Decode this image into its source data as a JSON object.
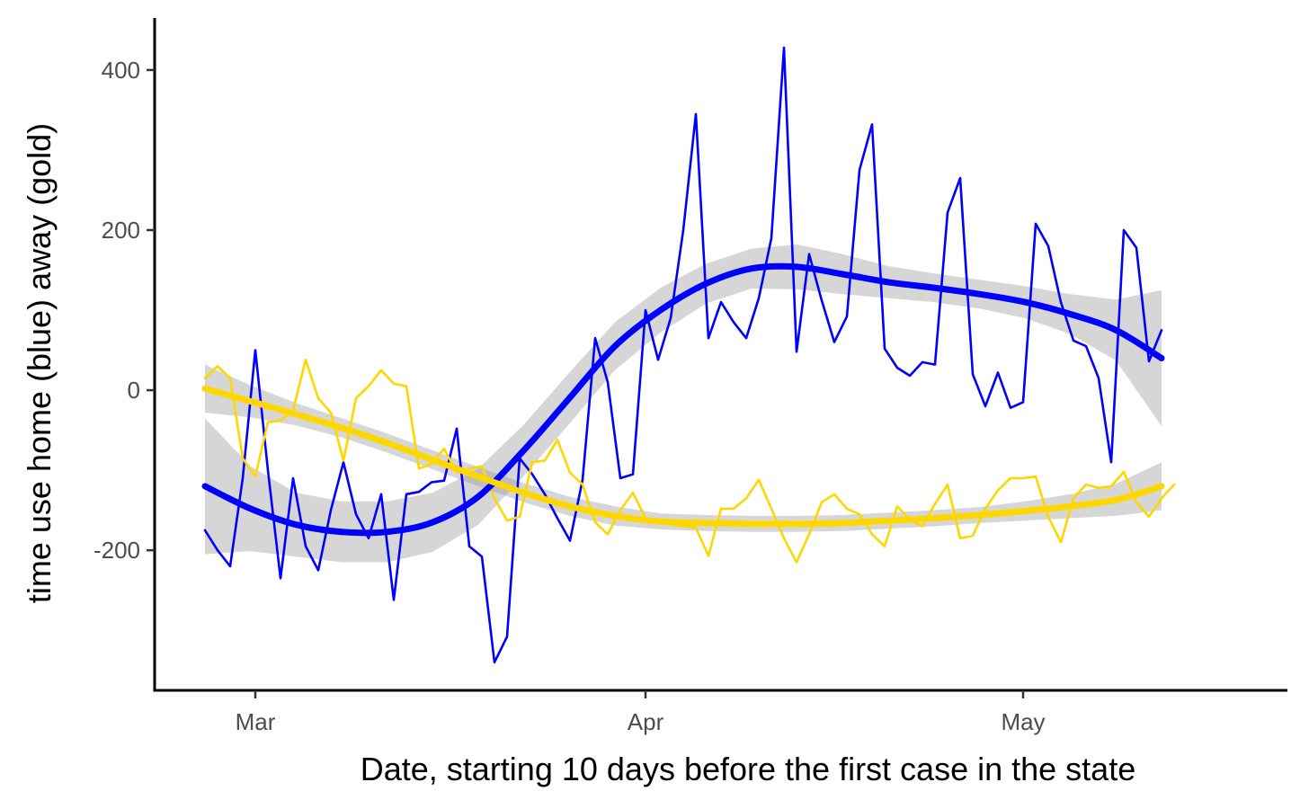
{
  "chart_data": {
    "type": "line",
    "title": "",
    "xlabel": "Date, starting 10 days before the first case in the state",
    "ylabel": "time use home (blue) away (gold)",
    "x_start": "2020-02-26",
    "x_ticks": [
      {
        "label": "Mar",
        "date": "2020-03-01"
      },
      {
        "label": "Apr",
        "date": "2020-04-01"
      },
      {
        "label": "May",
        "date": "2020-05-01"
      }
    ],
    "y_ticks": [
      -200,
      0,
      200,
      400
    ],
    "xlim": [
      "2020-02-22",
      "2020-05-22"
    ],
    "ylim": [
      -375,
      465
    ],
    "grid": false,
    "legend": "none",
    "series": [
      {
        "role": "home",
        "color": "#0000ff",
        "values": [
          -175,
          -200,
          -220,
          -110,
          50,
          -100,
          -235,
          -110,
          -195,
          -225,
          -150,
          -90,
          -155,
          -185,
          -130,
          -262,
          -130,
          -127,
          -115,
          -113,
          -48,
          -195,
          -208,
          -340,
          -308,
          -85,
          -105,
          -130,
          -160,
          -188,
          -112,
          65,
          10,
          -110,
          -105,
          100,
          38,
          90,
          200,
          345,
          65,
          110,
          85,
          65,
          115,
          190,
          428,
          48,
          170,
          112,
          60,
          92,
          275,
          332,
          52,
          28,
          18,
          35,
          32,
          222,
          265,
          20,
          -20,
          22,
          -22,
          -15,
          208,
          180,
          110,
          62,
          55,
          15,
          -90,
          200,
          178,
          36,
          75
        ]
      },
      {
        "role": "away",
        "color": "#ffd700",
        "values": [
          15,
          30,
          15,
          -85,
          -108,
          -40,
          -38,
          -25,
          38,
          -10,
          -28,
          -88,
          -10,
          5,
          25,
          8,
          5,
          -98,
          -92,
          -73,
          -103,
          -98,
          -95,
          -135,
          -163,
          -158,
          -90,
          -88,
          -62,
          -103,
          -118,
          -165,
          -180,
          -150,
          -128,
          -160,
          -162,
          -168,
          -170,
          -172,
          -207,
          -148,
          -148,
          -135,
          -112,
          -148,
          -185,
          -215,
          -180,
          -140,
          -130,
          -148,
          -155,
          -180,
          -195,
          -145,
          -162,
          -170,
          -142,
          -118,
          -185,
          -182,
          -148,
          -125,
          -110,
          -110,
          -108,
          -158,
          -190,
          -135,
          -118,
          -122,
          -120,
          -102,
          -140,
          -158,
          -135,
          -118
        ]
      },
      {
        "role": "home-smooth",
        "color": "#0000ff",
        "values": [
          -120,
          -148,
          -168,
          -177,
          -177,
          -165,
          -133,
          -75,
          -10,
          55,
          100,
          133,
          152,
          154,
          145,
          135,
          128,
          120,
          110,
          95,
          75,
          40
        ],
        "band_halfwidth": [
          85,
          53,
          40,
          38,
          38,
          37,
          35,
          32,
          32,
          30,
          28,
          25,
          25,
          28,
          25,
          20,
          18,
          18,
          20,
          25,
          38,
          85
        ]
      },
      {
        "role": "away-smooth",
        "color": "#ffd700",
        "values": [
          2,
          -14,
          -30,
          -47,
          -66,
          -87,
          -108,
          -128,
          -145,
          -157,
          -164,
          -166,
          -167,
          -167,
          -166,
          -163,
          -160,
          -156,
          -151,
          -145,
          -137,
          -120
        ],
        "band_halfwidth": [
          30,
          20,
          14,
          12,
          12,
          12,
          12,
          12,
          12,
          12,
          10,
          10,
          10,
          10,
          10,
          10,
          10,
          10,
          12,
          15,
          20,
          30
        ]
      }
    ]
  }
}
